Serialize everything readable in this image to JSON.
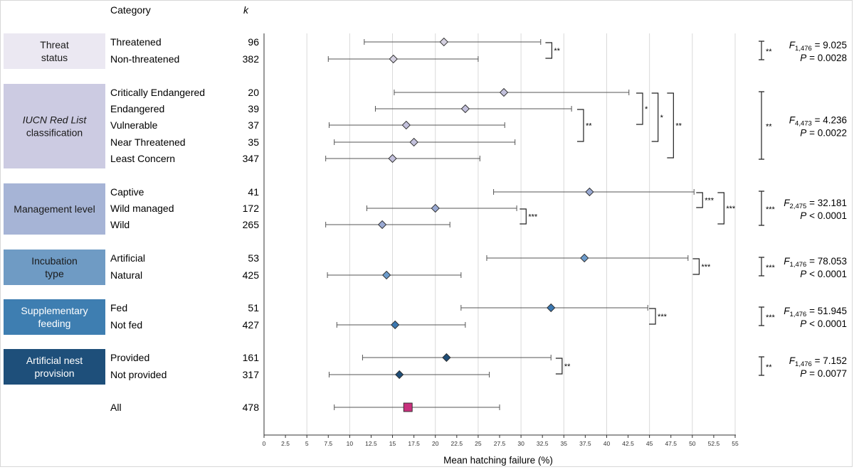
{
  "chart_data": {
    "type": "forest",
    "header": {
      "category": "Category",
      "k": "k"
    },
    "xlabel": "Mean hatching failure (%)",
    "xlim": [
      0,
      55
    ],
    "x_ticks": [
      "0",
      "2.5",
      "5",
      "7.5",
      "10",
      "12.5",
      "15",
      "17.5",
      "20",
      "22.5",
      "25",
      "27.5",
      "30",
      "32.5",
      "35",
      "37.5",
      "40",
      "42.5",
      "45",
      "47.5",
      "50",
      "52.5",
      "55"
    ],
    "grid_x_values": [
      5,
      10,
      15,
      20,
      25,
      30,
      35,
      40,
      45,
      50,
      55
    ],
    "groups": [
      {
        "label_lines": [
          "Threat",
          "status"
        ],
        "italic_line": -1,
        "box_color": "#ebe8f2",
        "text_color": "#1a1a1a",
        "stat_f_sub": "1,476",
        "stat_f_value": "= 9.025",
        "stat_p": "= 0.0028",
        "stat_p_op": "=",
        "stat_sig": "**",
        "rows": [
          {
            "name": "Threatened",
            "k": "96",
            "mean": 21.0,
            "lo": 11.7,
            "hi": 32.3,
            "color": "#d4d0e0"
          },
          {
            "name": "Non-threatened",
            "k": "382",
            "mean": 15.1,
            "lo": 7.5,
            "hi": 25.0,
            "color": "#d4d0e0"
          }
        ]
      },
      {
        "label_lines": [
          "IUCN Red List",
          "classification"
        ],
        "italic_line": 0,
        "box_color": "#cccbe2",
        "text_color": "#1a1a1a",
        "stat_f_sub": "4,473",
        "stat_f_value": "= 4.236",
        "stat_p": "= 0.0022",
        "stat_p_op": "=",
        "stat_sig": "**",
        "rows": [
          {
            "name": "Critically Endangered",
            "k": "20",
            "mean": 28.0,
            "lo": 15.2,
            "hi": 42.6,
            "color": "#c3c1dc"
          },
          {
            "name": "Endangered",
            "k": "39",
            "mean": 23.5,
            "lo": 13.0,
            "hi": 35.9,
            "color": "#c3c1dc"
          },
          {
            "name": "Vulnerable",
            "k": "37",
            "mean": 16.6,
            "lo": 7.6,
            "hi": 28.1,
            "color": "#c3c1dc"
          },
          {
            "name": "Near Threatened",
            "k": "35",
            "mean": 17.5,
            "lo": 8.2,
            "hi": 29.3,
            "color": "#c3c1dc"
          },
          {
            "name": "Least Concern",
            "k": "347",
            "mean": 15.0,
            "lo": 7.2,
            "hi": 25.2,
            "color": "#c3c1dc"
          }
        ]
      },
      {
        "label_lines": [
          "Management level"
        ],
        "italic_line": -1,
        "box_color": "#a6b4d6",
        "text_color": "#1a1a1a",
        "stat_f_sub": "2,475",
        "stat_f_value": "= 32.181",
        "stat_p": "< 0.0001",
        "stat_p_op": "<",
        "stat_sig": "***",
        "rows": [
          {
            "name": "Captive",
            "k": "41",
            "mean": 38.0,
            "lo": 26.8,
            "hi": 50.2,
            "color": "#99a9d2"
          },
          {
            "name": "Wild managed",
            "k": "172",
            "mean": 20.0,
            "lo": 12.0,
            "hi": 29.5,
            "color": "#99a9d2"
          },
          {
            "name": "Wild",
            "k": "265",
            "mean": 13.8,
            "lo": 7.2,
            "hi": 21.7,
            "color": "#99a9d2"
          }
        ]
      },
      {
        "label_lines": [
          "Incubation",
          "type"
        ],
        "italic_line": -1,
        "box_color": "#6f9bc4",
        "text_color": "#1a1a1a",
        "stat_f_sub": "1,476",
        "stat_f_value": "= 78.053",
        "stat_p": "< 0.0001",
        "stat_p_op": "<",
        "stat_sig": "***",
        "rows": [
          {
            "name": "Artificial",
            "k": "53",
            "mean": 37.4,
            "lo": 26.0,
            "hi": 49.5,
            "color": "#6c9bcb"
          },
          {
            "name": "Natural",
            "k": "425",
            "mean": 14.3,
            "lo": 7.4,
            "hi": 23.0,
            "color": "#6c9bcb"
          }
        ]
      },
      {
        "label_lines": [
          "Supplementary",
          "feeding"
        ],
        "italic_line": -1,
        "box_color": "#3e7eb1",
        "text_color": "#ffffff",
        "stat_f_sub": "1,476",
        "stat_f_value": "= 51.945",
        "stat_p": "< 0.0001",
        "stat_p_op": "<",
        "stat_sig": "***",
        "rows": [
          {
            "name": "Fed",
            "k": "51",
            "mean": 33.5,
            "lo": 23.0,
            "hi": 44.8,
            "color": "#3b77b0"
          },
          {
            "name": "Not fed",
            "k": "427",
            "mean": 15.3,
            "lo": 8.5,
            "hi": 23.5,
            "color": "#3b77b0"
          }
        ]
      },
      {
        "label_lines": [
          "Artificial nest",
          "provision"
        ],
        "italic_line": -1,
        "box_color": "#1e4f7a",
        "text_color": "#ffffff",
        "stat_f_sub": "1,476",
        "stat_f_value": "= 7.152",
        "stat_p": "= 0.0077",
        "stat_p_op": "=",
        "stat_sig": "**",
        "rows": [
          {
            "name": "Provided",
            "k": "161",
            "mean": 21.3,
            "lo": 11.5,
            "hi": 33.5,
            "color": "#1f4e78"
          },
          {
            "name": "Not provided",
            "k": "317",
            "mean": 15.8,
            "lo": 7.6,
            "hi": 26.3,
            "color": "#1f4e78"
          }
        ]
      }
    ],
    "overall": {
      "name": "All",
      "k": "478",
      "mean": 16.8,
      "lo": 8.2,
      "hi": 27.5,
      "color": "#c8317d"
    },
    "comparisons": [
      {
        "rows": [
          "Threatened",
          "Non-threatened"
        ],
        "x": 33.6,
        "sig": "**"
      },
      {
        "rows": [
          "Critically Endangered",
          "Vulnerable"
        ],
        "x": 44.2,
        "sig": "*"
      },
      {
        "rows": [
          "Critically Endangered",
          "Near Threatened"
        ],
        "x": 46.0,
        "sig": "*"
      },
      {
        "rows": [
          "Critically Endangered",
          "Least Concern"
        ],
        "x": 47.8,
        "sig": "**"
      },
      {
        "rows": [
          "Endangered",
          "Near Threatened"
        ],
        "x": 37.3,
        "sig": "**"
      },
      {
        "rows": [
          "Wild managed",
          "Wild"
        ],
        "x": 30.6,
        "sig": "***"
      },
      {
        "rows": [
          "Captive",
          "Wild managed"
        ],
        "x": 51.2,
        "sig": "***"
      },
      {
        "rows": [
          "Captive",
          "Wild"
        ],
        "x": 53.7,
        "sig": "***"
      },
      {
        "rows": [
          "Artificial",
          "Natural"
        ],
        "x": 50.8,
        "sig": "***"
      },
      {
        "rows": [
          "Fed",
          "Not fed"
        ],
        "x": 45.7,
        "sig": "***"
      },
      {
        "rows": [
          "Provided",
          "Not provided"
        ],
        "x": 34.8,
        "sig": "**"
      }
    ]
  }
}
